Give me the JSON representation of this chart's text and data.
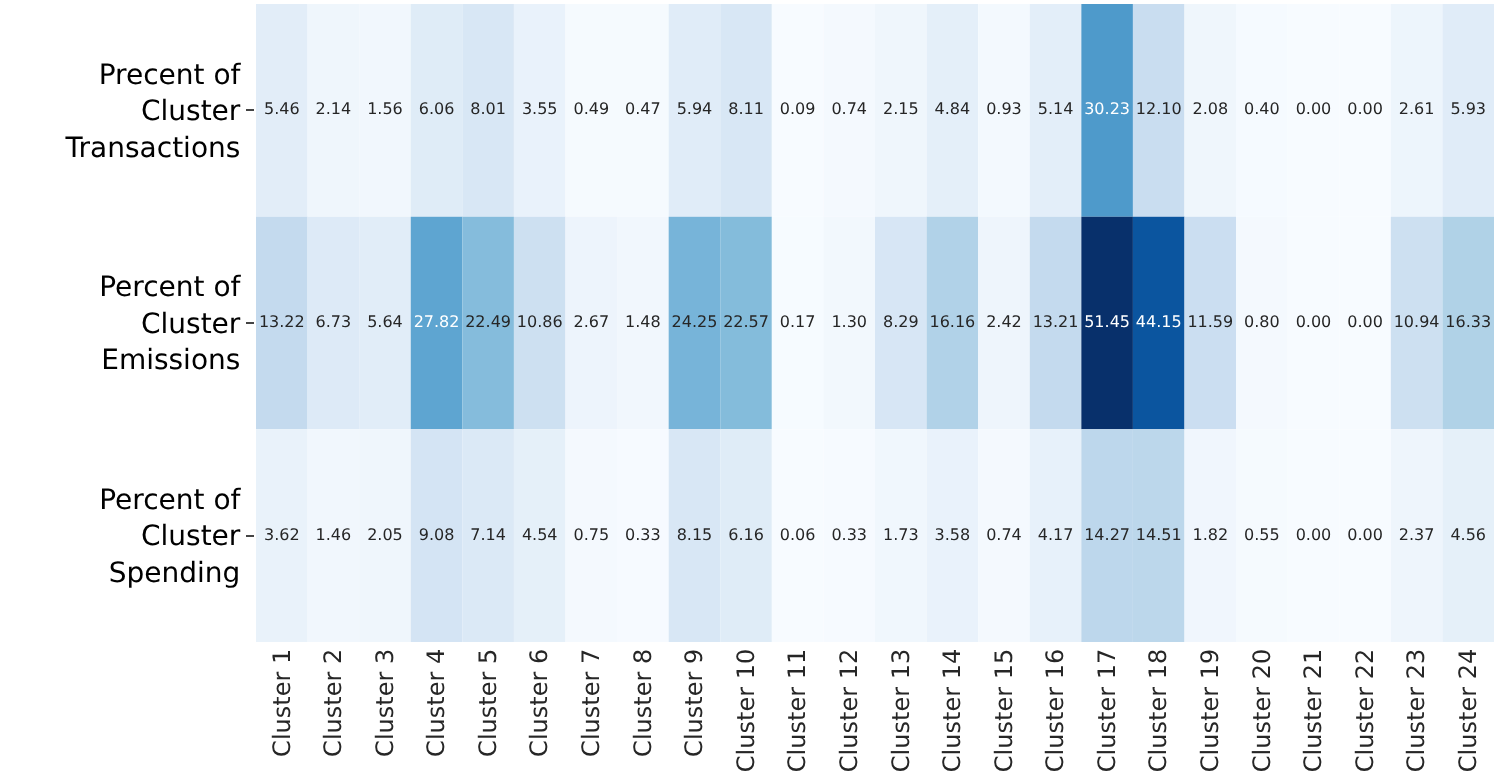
{
  "chart_data": {
    "type": "heatmap",
    "categories": [
      "Cluster 1",
      "Cluster 2",
      "Cluster 3",
      "Cluster 4",
      "Cluster 5",
      "Cluster 6",
      "Cluster 7",
      "Cluster 8",
      "Cluster 9",
      "Cluster 10",
      "Cluster 11",
      "Cluster 12",
      "Cluster 13",
      "Cluster 14",
      "Cluster 15",
      "Cluster 16",
      "Cluster 17",
      "Cluster 18",
      "Cluster 19",
      "Cluster 20",
      "Cluster 21",
      "Cluster 22",
      "Cluster 23",
      "Cluster 24"
    ],
    "y_categories": [
      "Precent of\nCluster\nTransactions",
      "Percent of\nCluster\nEmissions",
      "Percent of\nCluster\nSpending"
    ],
    "cells": [
      [
        5.46,
        2.14,
        1.56,
        6.06,
        8.01,
        3.55,
        0.49,
        0.47,
        5.94,
        8.11,
        0.09,
        0.74,
        2.15,
        4.84,
        0.93,
        5.14,
        30.23,
        12.1,
        2.08,
        0.4,
        0.0,
        0.0,
        2.61,
        5.93
      ],
      [
        13.22,
        6.73,
        5.64,
        27.82,
        22.49,
        10.86,
        2.67,
        1.48,
        24.25,
        22.57,
        0.17,
        1.3,
        8.29,
        16.16,
        2.42,
        13.21,
        51.45,
        44.15,
        11.59,
        0.8,
        0.0,
        0.0,
        10.94,
        16.33
      ],
      [
        3.62,
        1.46,
        2.05,
        9.08,
        7.14,
        4.54,
        0.75,
        0.33,
        8.15,
        6.16,
        0.06,
        0.33,
        1.73,
        3.58,
        0.74,
        4.17,
        14.27,
        14.51,
        1.82,
        0.55,
        0.0,
        0.0,
        2.37,
        4.56
      ]
    ],
    "cell_labels": [
      [
        "5.46",
        "2.14",
        "1.56",
        "6.06",
        "8.01",
        "3.55",
        "0.49",
        "0.47",
        "5.94",
        "8.11",
        "0.09",
        "0.74",
        "2.15",
        "4.84",
        "0.93",
        "5.14",
        "30.23",
        "12.10",
        "2.08",
        "0.40",
        "0.00",
        "0.00",
        "2.61",
        "5.93"
      ],
      [
        "13.22",
        "6.73",
        "5.64",
        "27.82",
        "22.49",
        "10.86",
        "2.67",
        "1.48",
        "24.25",
        "22.57",
        "0.17",
        "1.30",
        "8.29",
        "16.16",
        "2.42",
        "13.21",
        "51.45",
        "44.15",
        "11.59",
        "0.80",
        "0.00",
        "0.00",
        "10.94",
        "16.33"
      ],
      [
        "3.62",
        "1.46",
        "2.05",
        "9.08",
        "7.14",
        "4.54",
        "0.75",
        "0.33",
        "8.15",
        "6.16",
        "0.06",
        "0.33",
        "1.73",
        "3.58",
        "0.74",
        "4.17",
        "14.27",
        "14.51",
        "1.82",
        "0.55",
        "0.00",
        "0.00",
        "2.37",
        "4.56"
      ]
    ]
  }
}
